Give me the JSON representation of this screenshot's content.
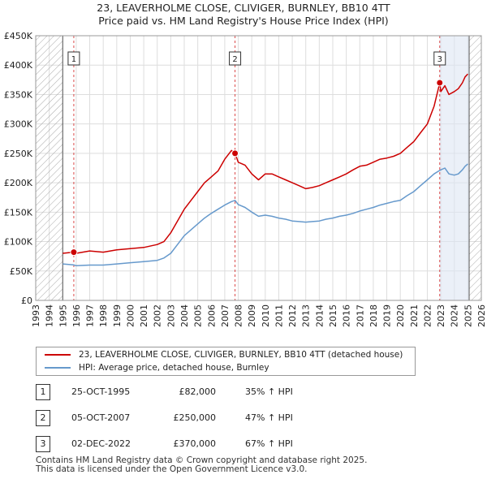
{
  "title": {
    "line1": "23, LEAVERHOLME CLOSE, CLIVIGER, BURNLEY, BB10 4TT",
    "line2": "Price paid vs. HM Land Registry's House Price Index (HPI)"
  },
  "colors": {
    "property": "#cc0000",
    "hpi": "#6699cc",
    "hatch": "#aaaaaa",
    "highlight": "#dde6f3",
    "marker_line": "#cc0000"
  },
  "chart_data": {
    "type": "line",
    "title": "23, LEAVERHOLME CLOSE, CLIVIGER, BURNLEY, BB10 4TT - Price paid vs. HM Land Registry's House Price Index (HPI)",
    "xlabel": "",
    "ylabel": "",
    "xlim": [
      1993,
      2026
    ],
    "ylim": [
      0,
      450000
    ],
    "x_ticks": [
      1993,
      1994,
      1995,
      1996,
      1997,
      1998,
      1999,
      2000,
      2001,
      2002,
      2003,
      2004,
      2005,
      2006,
      2007,
      2008,
      2009,
      2010,
      2011,
      2012,
      2013,
      2014,
      2015,
      2016,
      2017,
      2018,
      2019,
      2020,
      2021,
      2022,
      2023,
      2024,
      2025,
      2026
    ],
    "y_ticks": [
      0,
      50000,
      100000,
      150000,
      200000,
      250000,
      300000,
      350000,
      400000,
      450000
    ],
    "y_tick_labels": [
      "£0",
      "£50K",
      "£100K",
      "£150K",
      "£200K",
      "£250K",
      "£300K",
      "£350K",
      "£400K",
      "£450K"
    ],
    "hatched_ranges": [
      [
        1993,
        1995.0
      ],
      [
        2025.1,
        2026
      ]
    ],
    "series": [
      {
        "name": "23, LEAVERHOLME CLOSE, CLIVIGER, BURNLEY, BB10 4TT (detached house)",
        "x": [
          1995.0,
          1995.8,
          1996.0,
          1997.0,
          1998.0,
          1999.0,
          2000.0,
          2001.0,
          2002.0,
          2002.5,
          2003.0,
          2003.5,
          2004.0,
          2004.5,
          2005.0,
          2005.5,
          2006.0,
          2006.5,
          2007.0,
          2007.5,
          2007.76,
          2008.0,
          2008.5,
          2009.0,
          2009.5,
          2010.0,
          2010.5,
          2011.0,
          2011.5,
          2012.0,
          2012.5,
          2013.0,
          2013.5,
          2014.0,
          2014.5,
          2015.0,
          2015.5,
          2016.0,
          2016.5,
          2017.0,
          2017.5,
          2018.0,
          2018.5,
          2019.0,
          2019.5,
          2020.0,
          2020.5,
          2021.0,
          2021.5,
          2022.0,
          2022.5,
          2022.92,
          2023.0,
          2023.3,
          2023.6,
          2024.0,
          2024.3,
          2024.6,
          2024.8,
          2025.0
        ],
        "y": [
          80000,
          82000,
          80000,
          84000,
          82000,
          86000,
          88000,
          90000,
          95000,
          100000,
          115000,
          135000,
          155000,
          170000,
          185000,
          200000,
          210000,
          220000,
          240000,
          255000,
          250000,
          235000,
          230000,
          215000,
          205000,
          215000,
          215000,
          210000,
          205000,
          200000,
          195000,
          190000,
          192000,
          195000,
          200000,
          205000,
          210000,
          215000,
          222000,
          228000,
          230000,
          235000,
          240000,
          242000,
          245000,
          250000,
          260000,
          270000,
          285000,
          300000,
          330000,
          370000,
          355000,
          365000,
          350000,
          355000,
          360000,
          370000,
          380000,
          385000
        ]
      },
      {
        "name": "HPI: Average price, detached house, Burnley",
        "x": [
          1995.0,
          1995.8,
          1996.0,
          1997.0,
          1998.0,
          1999.0,
          2000.0,
          2001.0,
          2002.0,
          2002.5,
          2003.0,
          2003.5,
          2004.0,
          2004.5,
          2005.0,
          2005.5,
          2006.0,
          2006.5,
          2007.0,
          2007.5,
          2007.76,
          2008.0,
          2008.5,
          2009.0,
          2009.5,
          2010.0,
          2010.5,
          2011.0,
          2011.5,
          2012.0,
          2012.5,
          2013.0,
          2013.5,
          2014.0,
          2014.5,
          2015.0,
          2015.5,
          2016.0,
          2016.5,
          2017.0,
          2017.5,
          2018.0,
          2018.5,
          2019.0,
          2019.5,
          2020.0,
          2020.5,
          2021.0,
          2021.5,
          2022.0,
          2022.5,
          2022.92,
          2023.0,
          2023.3,
          2023.6,
          2024.0,
          2024.3,
          2024.6,
          2024.8,
          2025.0
        ],
        "y": [
          62000,
          60500,
          59000,
          60000,
          60000,
          62000,
          64000,
          66000,
          68000,
          72000,
          80000,
          95000,
          110000,
          120000,
          130000,
          140000,
          148000,
          155000,
          162000,
          168000,
          170000,
          163000,
          158000,
          150000,
          143000,
          145000,
          143000,
          140000,
          138000,
          135000,
          134000,
          133000,
          134000,
          135000,
          138000,
          140000,
          143000,
          145000,
          148000,
          152000,
          155000,
          158000,
          162000,
          165000,
          168000,
          170000,
          178000,
          185000,
          195000,
          205000,
          215000,
          221000,
          222000,
          225000,
          215000,
          213000,
          215000,
          222000,
          228000,
          232000
        ]
      }
    ],
    "transactions": [
      {
        "marker": "1",
        "x": 1995.82,
        "y": 82000,
        "date": "25-OCT-1995",
        "price": "£82,000",
        "hpi_change": "35% ↑ HPI"
      },
      {
        "marker": "2",
        "x": 2007.76,
        "y": 250000,
        "date": "05-OCT-2007",
        "price": "£250,000",
        "hpi_change": "47% ↑ HPI"
      },
      {
        "marker": "3",
        "x": 2022.92,
        "y": 370000,
        "date": "02-DEC-2022",
        "price": "£370,000",
        "hpi_change": "67% ↑ HPI"
      }
    ]
  },
  "legend": {
    "items": [
      {
        "label": "23, LEAVERHOLME CLOSE, CLIVIGER, BURNLEY, BB10 4TT (detached house)"
      },
      {
        "label": "HPI: Average price, detached house, Burnley"
      }
    ]
  },
  "footer": {
    "line1": "Contains HM Land Registry data © Crown copyright and database right 2025.",
    "line2": "This data is licensed under the Open Government Licence v3.0."
  }
}
